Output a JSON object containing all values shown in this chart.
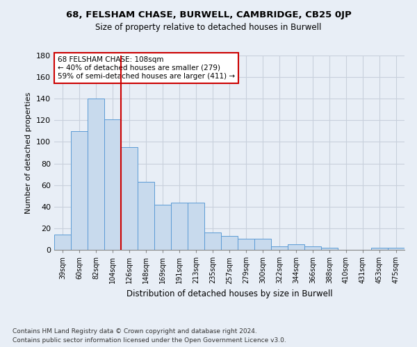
{
  "title_line1": "68, FELSHAM CHASE, BURWELL, CAMBRIDGE, CB25 0JP",
  "title_line2": "Size of property relative to detached houses in Burwell",
  "xlabel": "Distribution of detached houses by size in Burwell",
  "ylabel": "Number of detached properties",
  "categories": [
    "39sqm",
    "60sqm",
    "82sqm",
    "104sqm",
    "126sqm",
    "148sqm",
    "169sqm",
    "191sqm",
    "213sqm",
    "235sqm",
    "257sqm",
    "279sqm",
    "300sqm",
    "322sqm",
    "344sqm",
    "366sqm",
    "388sqm",
    "410sqm",
    "431sqm",
    "453sqm",
    "475sqm"
  ],
  "values": [
    14,
    110,
    140,
    121,
    95,
    63,
    42,
    44,
    44,
    16,
    13,
    10,
    10,
    3,
    5,
    3,
    2,
    0,
    0,
    2,
    2
  ],
  "bar_color": "#c8daed",
  "bar_edge_color": "#5b9bd5",
  "grid_color": "#c8d0dc",
  "bg_color": "#e8eef6",
  "red_line_x": 3.5,
  "annotation_text_line1": "68 FELSHAM CHASE: 108sqm",
  "annotation_text_line2": "← 40% of detached houses are smaller (279)",
  "annotation_text_line3": "59% of semi-detached houses are larger (411) →",
  "annotation_box_color": "#ffffff",
  "annotation_box_edge": "#cc0000",
  "red_line_color": "#cc0000",
  "ylim": [
    0,
    180
  ],
  "yticks": [
    0,
    20,
    40,
    60,
    80,
    100,
    120,
    140,
    160,
    180
  ],
  "footer_line1": "Contains HM Land Registry data © Crown copyright and database right 2024.",
  "footer_line2": "Contains public sector information licensed under the Open Government Licence v3.0."
}
